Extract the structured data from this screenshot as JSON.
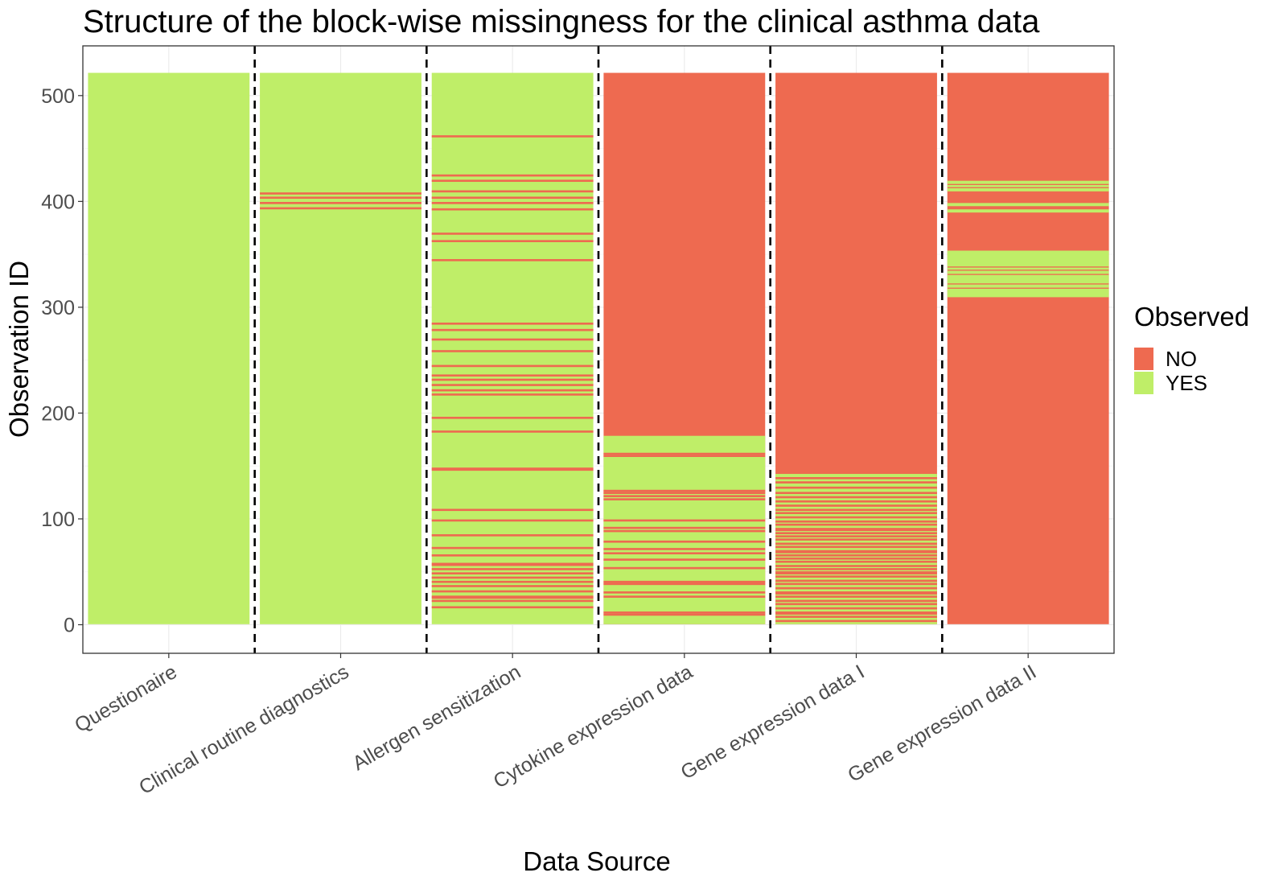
{
  "chart_data": {
    "type": "heatmap",
    "title": "Structure of the block-wise missingness for the clinical asthma data",
    "xlabel": "Data Source",
    "ylabel": "Observation ID",
    "ylim": [
      -27,
      547
    ],
    "n_obs": 521,
    "yticks": [
      0,
      100,
      200,
      300,
      400,
      500
    ],
    "grid": true,
    "legend": {
      "title": "Observed",
      "position": "right",
      "entries": [
        {
          "label": "NO",
          "color": "#ee6a50"
        },
        {
          "label": "YES",
          "color": "#bfee68"
        }
      ]
    },
    "colors": {
      "NO": "#ee6a50",
      "YES": "#bfee68"
    },
    "categories": [
      "Questionaire",
      "Clinical routine diagnostics",
      "Allergen sensitization",
      "Cytokine expression data",
      "Gene expression data I",
      "Gene expression data II"
    ],
    "series": [
      {
        "category": "Questionaire",
        "default": "YES",
        "observed_range": [
          1,
          521
        ],
        "NO_ranges": []
      },
      {
        "category": "Clinical routine diagnostics",
        "default": "YES",
        "observed_range": [
          1,
          521
        ],
        "NO_ranges": [
          [
            393,
            394
          ],
          [
            398,
            399
          ],
          [
            403,
            404
          ],
          [
            407,
            408
          ]
        ]
      },
      {
        "category": "Allergen sensitization",
        "default": "YES",
        "observed_range": [
          1,
          521
        ],
        "NO_ranges": [
          [
            16,
            17
          ],
          [
            22,
            23
          ],
          [
            25,
            27
          ],
          [
            31,
            32
          ],
          [
            36,
            37
          ],
          [
            40,
            41
          ],
          [
            44,
            45
          ],
          [
            48,
            49
          ],
          [
            52,
            53
          ],
          [
            56,
            58
          ],
          [
            65,
            66
          ],
          [
            72,
            73
          ],
          [
            84,
            85
          ],
          [
            98,
            99
          ],
          [
            108,
            109
          ],
          [
            146,
            148
          ],
          [
            182,
            183
          ],
          [
            195,
            196
          ],
          [
            217,
            218
          ],
          [
            221,
            222
          ],
          [
            226,
            227
          ],
          [
            231,
            232
          ],
          [
            235,
            236
          ],
          [
            244,
            245
          ],
          [
            258,
            259
          ],
          [
            269,
            270
          ],
          [
            278,
            279
          ],
          [
            284,
            285
          ],
          [
            344,
            345
          ],
          [
            362,
            363
          ],
          [
            369,
            370
          ],
          [
            392,
            393
          ],
          [
            398,
            399
          ],
          [
            403,
            404
          ],
          [
            409,
            410
          ],
          [
            419,
            420
          ],
          [
            424,
            425
          ],
          [
            461,
            462
          ]
        ]
      },
      {
        "category": "Cytokine expression data",
        "default": "NO",
        "observed_range": [
          1,
          178
        ],
        "NO_ranges": [
          [
            9,
            10
          ],
          [
            11,
            12
          ],
          [
            26,
            27
          ],
          [
            30,
            31
          ],
          [
            38,
            39
          ],
          [
            40,
            41
          ],
          [
            53,
            54
          ],
          [
            61,
            62
          ],
          [
            67,
            68
          ],
          [
            71,
            72
          ],
          [
            78,
            79
          ],
          [
            88,
            89
          ],
          [
            91,
            92
          ],
          [
            98,
            99
          ],
          [
            118,
            119
          ],
          [
            121,
            122
          ],
          [
            124,
            125
          ],
          [
            126,
            127
          ],
          [
            159,
            160
          ],
          [
            161,
            162
          ]
        ]
      },
      {
        "category": "Gene expression data I",
        "default": "NO",
        "observed_range": [
          1,
          142
        ],
        "NO_ranges": [
          [
            3,
            4
          ],
          [
            7,
            8
          ],
          [
            10,
            12
          ],
          [
            15,
            16
          ],
          [
            19,
            20
          ],
          [
            22,
            23
          ],
          [
            26,
            27
          ],
          [
            29,
            31
          ],
          [
            34,
            35
          ],
          [
            38,
            39
          ],
          [
            41,
            42
          ],
          [
            45,
            46
          ],
          [
            48,
            50
          ],
          [
            52,
            53
          ],
          [
            55,
            56
          ],
          [
            59,
            60
          ],
          [
            62,
            63
          ],
          [
            65,
            66
          ],
          [
            68,
            70
          ],
          [
            73,
            74
          ],
          [
            76,
            77
          ],
          [
            80,
            81
          ],
          [
            83,
            84
          ],
          [
            86,
            87
          ],
          [
            89,
            91
          ],
          [
            94,
            95
          ],
          [
            97,
            98
          ],
          [
            101,
            102
          ],
          [
            105,
            106
          ],
          [
            108,
            109
          ],
          [
            112,
            113
          ],
          [
            116,
            117
          ],
          [
            120,
            121
          ],
          [
            124,
            125
          ],
          [
            129,
            130
          ],
          [
            134,
            135
          ],
          [
            138,
            139
          ]
        ]
      },
      {
        "category": "Gene expression data II",
        "default": "NO",
        "observed_range": [],
        "YES_ranges": [
          [
            310,
            317
          ],
          [
            319,
            321
          ],
          [
            323,
            330
          ],
          [
            332,
            334
          ],
          [
            336,
            337
          ],
          [
            339,
            353
          ],
          [
            390,
            392
          ],
          [
            396,
            398
          ],
          [
            410,
            412
          ],
          [
            414,
            415
          ],
          [
            417,
            419
          ]
        ]
      }
    ]
  }
}
